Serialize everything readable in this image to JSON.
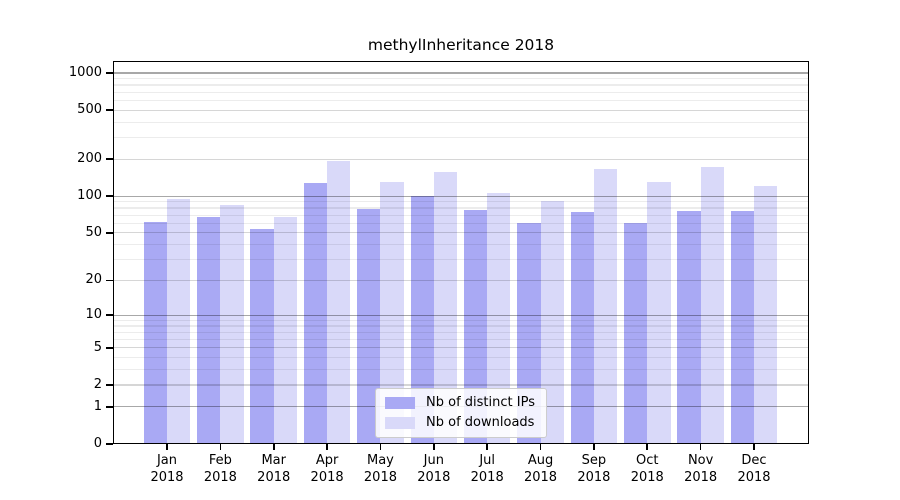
{
  "title": "methylInheritance 2018",
  "chart_data": {
    "type": "bar",
    "title": "methylInheritance 2018",
    "categories": [
      "Jan 2018",
      "Feb 2018",
      "Mar 2018",
      "Apr 2018",
      "May 2018",
      "Jun 2018",
      "Jul 2018",
      "Aug 2018",
      "Sep 2018",
      "Oct 2018",
      "Nov 2018",
      "Dec 2018"
    ],
    "series": [
      {
        "name": "Nb of distinct IPs",
        "color": "#a9a9f4",
        "values": [
          62,
          68,
          54,
          128,
          79,
          100,
          77,
          60,
          74,
          60,
          75,
          75
        ]
      },
      {
        "name": "Nb of downloads",
        "color": "#d9d9f9",
        "values": [
          95,
          85,
          67,
          194,
          130,
          156,
          106,
          92,
          168,
          130,
          172,
          120
        ]
      }
    ],
    "xlabel": "",
    "ylabel": "",
    "y_scale": "log1p",
    "y_ticks": [
      0,
      1,
      2,
      5,
      10,
      20,
      50,
      100,
      200,
      500,
      1000
    ],
    "y_minor_gridlines": [
      3,
      4,
      6,
      7,
      8,
      9,
      30,
      40,
      60,
      70,
      80,
      90,
      300,
      400,
      600,
      700,
      800,
      900
    ],
    "ylim": [
      0,
      1250
    ],
    "grid": true,
    "grid_above_bars": true,
    "legend_position": "lower center"
  },
  "colors": {
    "bar_distinct_ips": "#a9a9f4",
    "bar_downloads": "#d9d9f9",
    "grid_power10": "#aaaaaa",
    "grid_major": "#d8d8d8",
    "grid_minor": "#ececec",
    "spine": "#000000",
    "background": "#ffffff"
  }
}
